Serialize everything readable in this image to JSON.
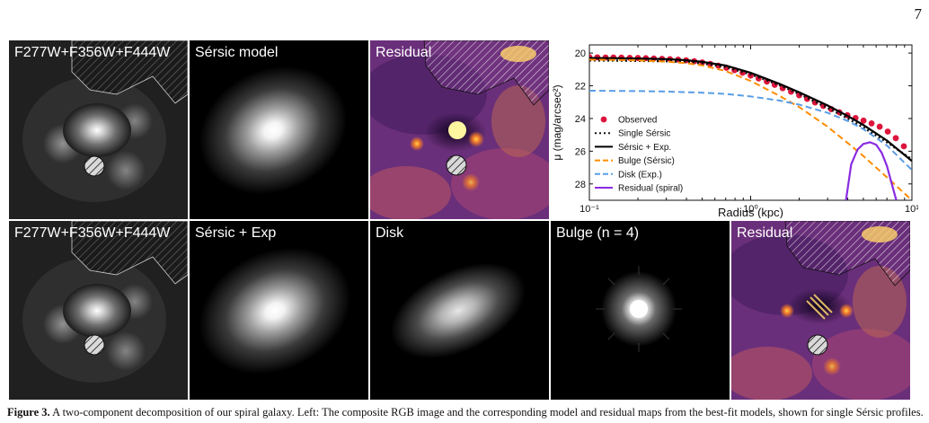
{
  "page_number": "7",
  "panels_row1": [
    {
      "label": "F277W+F356W+F444W",
      "kind": "rgb"
    },
    {
      "label": "Sérsic model",
      "kind": "model"
    },
    {
      "label": "Residual",
      "kind": "residual"
    }
  ],
  "panels_row2": [
    {
      "label": "F277W+F356W+F444W",
      "kind": "rgb"
    },
    {
      "label": "Sérsic + Exp",
      "kind": "model"
    },
    {
      "label": "Disk",
      "kind": "disk"
    },
    {
      "label": "Bulge (n = 4)",
      "kind": "bulge"
    },
    {
      "label": "Residual",
      "kind": "residual"
    }
  ],
  "chart_data": {
    "type": "line",
    "xlabel": "Radius (kpc)",
    "ylabel": "μ (mag/arcsec²)",
    "xscale": "log",
    "xlim": [
      0.1,
      10
    ],
    "ylim": [
      29,
      19.5
    ],
    "y_inverted": true,
    "xticks": [
      "10⁻¹",
      "10⁰",
      "10¹"
    ],
    "yticks": [
      20,
      22,
      24,
      26,
      28
    ],
    "legend_position": "left",
    "colors": {
      "observed": "#dc143c",
      "single_sersic": "#111111",
      "sersic_exp": "#000000",
      "bulge": "#ff8c00",
      "disk": "#5a9de6",
      "residual": "#8a2be2"
    },
    "series": [
      {
        "name": "Observed",
        "style": "points",
        "color": "#dc143c",
        "x": [
          0.1,
          0.112,
          0.126,
          0.141,
          0.158,
          0.178,
          0.2,
          0.224,
          0.251,
          0.282,
          0.316,
          0.355,
          0.398,
          0.447,
          0.501,
          0.562,
          0.631,
          0.708,
          0.794,
          0.891,
          1.0,
          1.12,
          1.26,
          1.41,
          1.58,
          1.78,
          2.0,
          2.24,
          2.51,
          2.82,
          3.16,
          3.55,
          3.98,
          4.47,
          5.01,
          5.62,
          6.31,
          7.08,
          7.94,
          8.91
        ],
        "y": [
          20.25,
          20.26,
          20.27,
          20.27,
          20.28,
          20.29,
          20.3,
          20.31,
          20.33,
          20.35,
          20.37,
          20.4,
          20.44,
          20.5,
          20.57,
          20.66,
          20.77,
          20.9,
          21.04,
          21.2,
          21.37,
          21.55,
          21.74,
          21.94,
          22.15,
          22.36,
          22.58,
          22.8,
          23.02,
          23.23,
          23.43,
          23.62,
          23.8,
          23.97,
          24.13,
          24.3,
          24.5,
          24.8,
          25.2,
          25.7
        ]
      },
      {
        "name": "Single Sérsic",
        "style": "dotted",
        "color": "#111111",
        "x": [
          0.1,
          0.15,
          0.2,
          0.3,
          0.4,
          0.5,
          0.7,
          1.0,
          1.5,
          2.0,
          3.0,
          4.0,
          5.0,
          7.0,
          10.0
        ],
        "y": [
          20.45,
          20.46,
          20.48,
          20.5,
          20.55,
          20.63,
          20.85,
          21.3,
          21.95,
          22.5,
          23.35,
          24.0,
          24.55,
          25.45,
          26.5
        ]
      },
      {
        "name": "Sérsic + Exp.",
        "style": "solid",
        "color": "#000000",
        "x": [
          0.1,
          0.15,
          0.2,
          0.3,
          0.4,
          0.5,
          0.7,
          1.0,
          1.5,
          2.0,
          3.0,
          4.0,
          5.0,
          7.0,
          10.0
        ],
        "y": [
          20.3,
          20.31,
          20.33,
          20.37,
          20.44,
          20.53,
          20.76,
          21.2,
          21.87,
          22.4,
          23.2,
          23.85,
          24.4,
          25.35,
          26.6
        ]
      },
      {
        "name": "Bulge (Sérsic)",
        "style": "dashed",
        "color": "#ff8c00",
        "x": [
          0.1,
          0.15,
          0.2,
          0.3,
          0.4,
          0.5,
          0.7,
          1.0,
          1.5,
          2.0,
          3.0,
          4.0,
          5.0,
          7.0,
          10.0
        ],
        "y": [
          20.4,
          20.42,
          20.45,
          20.52,
          20.62,
          20.75,
          21.1,
          21.7,
          22.6,
          23.3,
          24.5,
          25.5,
          26.3,
          27.6,
          29.0
        ]
      },
      {
        "name": "Disk (Exp.)",
        "style": "dashed",
        "color": "#5a9de6",
        "x": [
          0.1,
          0.2,
          0.3,
          0.5,
          0.7,
          1.0,
          1.5,
          2.0,
          3.0,
          4.0,
          5.0,
          7.0,
          10.0
        ],
        "y": [
          22.3,
          22.32,
          22.35,
          22.42,
          22.5,
          22.65,
          22.9,
          23.15,
          23.65,
          24.15,
          24.65,
          25.65,
          27.15
        ]
      },
      {
        "name": "Residual (spiral)",
        "style": "solid",
        "color": "#8a2be2",
        "x": [
          3.9,
          4.2,
          4.6,
          5.0,
          5.5,
          6.0,
          6.5,
          7.0,
          7.5,
          8.0
        ],
        "y": [
          29.0,
          26.8,
          25.9,
          25.55,
          25.45,
          25.6,
          26.1,
          26.9,
          28.0,
          29.0
        ]
      }
    ]
  },
  "caption": {
    "lead": "Figure 3.",
    "text": "A two-component decomposition of our spiral galaxy. Left: The composite RGB image and the corresponding model and residual maps from the best-fit models, shown for single Sérsic profiles."
  }
}
